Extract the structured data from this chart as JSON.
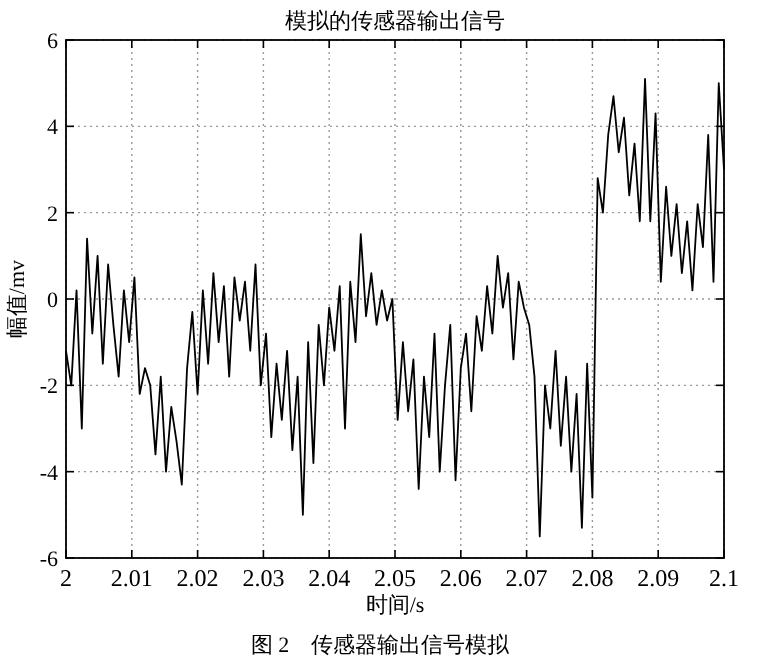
{
  "chart_data": {
    "type": "line",
    "title": "模拟的传感器输出信号",
    "xlabel": "时间/s",
    "ylabel": "幅值/mv",
    "annotations": [
      "图 2　传感器输出信号模拟"
    ],
    "xlim": [
      2,
      2.1
    ],
    "ylim": [
      -6,
      6
    ],
    "xticks": [
      2,
      2.01,
      2.02,
      2.03,
      2.04,
      2.05,
      2.06,
      2.07,
      2.08,
      2.09,
      2.1
    ],
    "yticks": [
      -6,
      -4,
      -2,
      0,
      2,
      4,
      6
    ],
    "grid": true,
    "color": "#000000",
    "x": [
      2.0,
      2.0008,
      2.0016,
      2.0024,
      2.0032,
      2.004,
      2.0048,
      2.0056,
      2.0064,
      2.0072,
      2.008,
      2.0088,
      2.0096,
      2.0104,
      2.0112,
      2.012,
      2.0128,
      2.0136,
      2.0144,
      2.0152,
      2.016,
      2.0168,
      2.0176,
      2.0184,
      2.0192,
      2.02,
      2.0208,
      2.0216,
      2.0224,
      2.0232,
      2.024,
      2.0248,
      2.0256,
      2.0264,
      2.0272,
      2.028,
      2.0288,
      2.0296,
      2.0304,
      2.0312,
      2.032,
      2.0328,
      2.0336,
      2.0344,
      2.0352,
      2.036,
      2.0368,
      2.0376,
      2.0384,
      2.0392,
      2.04,
      2.0408,
      2.0416,
      2.0424,
      2.0432,
      2.044,
      2.0448,
      2.0456,
      2.0464,
      2.0472,
      2.048,
      2.0488,
      2.0496,
      2.0504,
      2.0512,
      2.052,
      2.0528,
      2.0536,
      2.0544,
      2.0552,
      2.056,
      2.0568,
      2.0576,
      2.0584,
      2.0592,
      2.06,
      2.0608,
      2.0616,
      2.0624,
      2.0632,
      2.064,
      2.0648,
      2.0656,
      2.0664,
      2.0672,
      2.068,
      2.0688,
      2.0696,
      2.0704,
      2.0712,
      2.072,
      2.0728,
      2.0736,
      2.0744,
      2.0752,
      2.076,
      2.0768,
      2.0776,
      2.0784,
      2.0792,
      2.08,
      2.0808,
      2.0816,
      2.0824,
      2.0832,
      2.084,
      2.0848,
      2.0856,
      2.0864,
      2.0872,
      2.088,
      2.0888,
      2.0896,
      2.0904,
      2.0912,
      2.092,
      2.0928,
      2.0936,
      2.0944,
      2.0952,
      2.096,
      2.0968,
      2.0976,
      2.0984,
      2.0992,
      2.1
    ],
    "values": [
      -1.2,
      -2.0,
      0.2,
      -3.0,
      1.4,
      -0.8,
      1.0,
      -1.5,
      0.8,
      -0.6,
      -1.8,
      0.2,
      -1.0,
      0.5,
      -2.2,
      -1.6,
      -2.0,
      -3.6,
      -1.8,
      -4.0,
      -2.5,
      -3.3,
      -4.3,
      -1.6,
      -0.3,
      -2.2,
      0.2,
      -1.5,
      0.6,
      -1.0,
      0.3,
      -1.8,
      0.5,
      -0.5,
      0.4,
      -1.2,
      0.8,
      -2.0,
      -0.8,
      -3.2,
      -1.5,
      -2.8,
      -1.2,
      -3.5,
      -1.8,
      -5.0,
      -1.0,
      -3.8,
      -0.6,
      -2.0,
      -0.2,
      -1.2,
      0.3,
      -3.0,
      0.4,
      -1.0,
      1.5,
      -0.4,
      0.6,
      -0.6,
      0.2,
      -0.5,
      0.0,
      -2.8,
      -1.0,
      -2.6,
      -1.4,
      -4.4,
      -1.8,
      -3.2,
      -0.8,
      -4.0,
      -2.0,
      -0.6,
      -4.2,
      -1.6,
      -0.8,
      -2.6,
      -0.4,
      -1.2,
      0.3,
      -0.8,
      1.0,
      -0.2,
      0.6,
      -1.4,
      0.4,
      -0.2,
      -0.6,
      -1.8,
      -5.5,
      -2.0,
      -3.0,
      -1.2,
      -3.4,
      -1.8,
      -4.0,
      -2.2,
      -5.3,
      -1.5,
      -4.6,
      2.8,
      2.0,
      3.8,
      4.7,
      3.4,
      4.2,
      2.4,
      3.6,
      1.8,
      5.1,
      1.8,
      4.3,
      0.4,
      2.6,
      1.0,
      2.2,
      0.6,
      1.8,
      0.2,
      2.2,
      1.2,
      3.8,
      0.4,
      5.0,
      3.0
    ]
  }
}
